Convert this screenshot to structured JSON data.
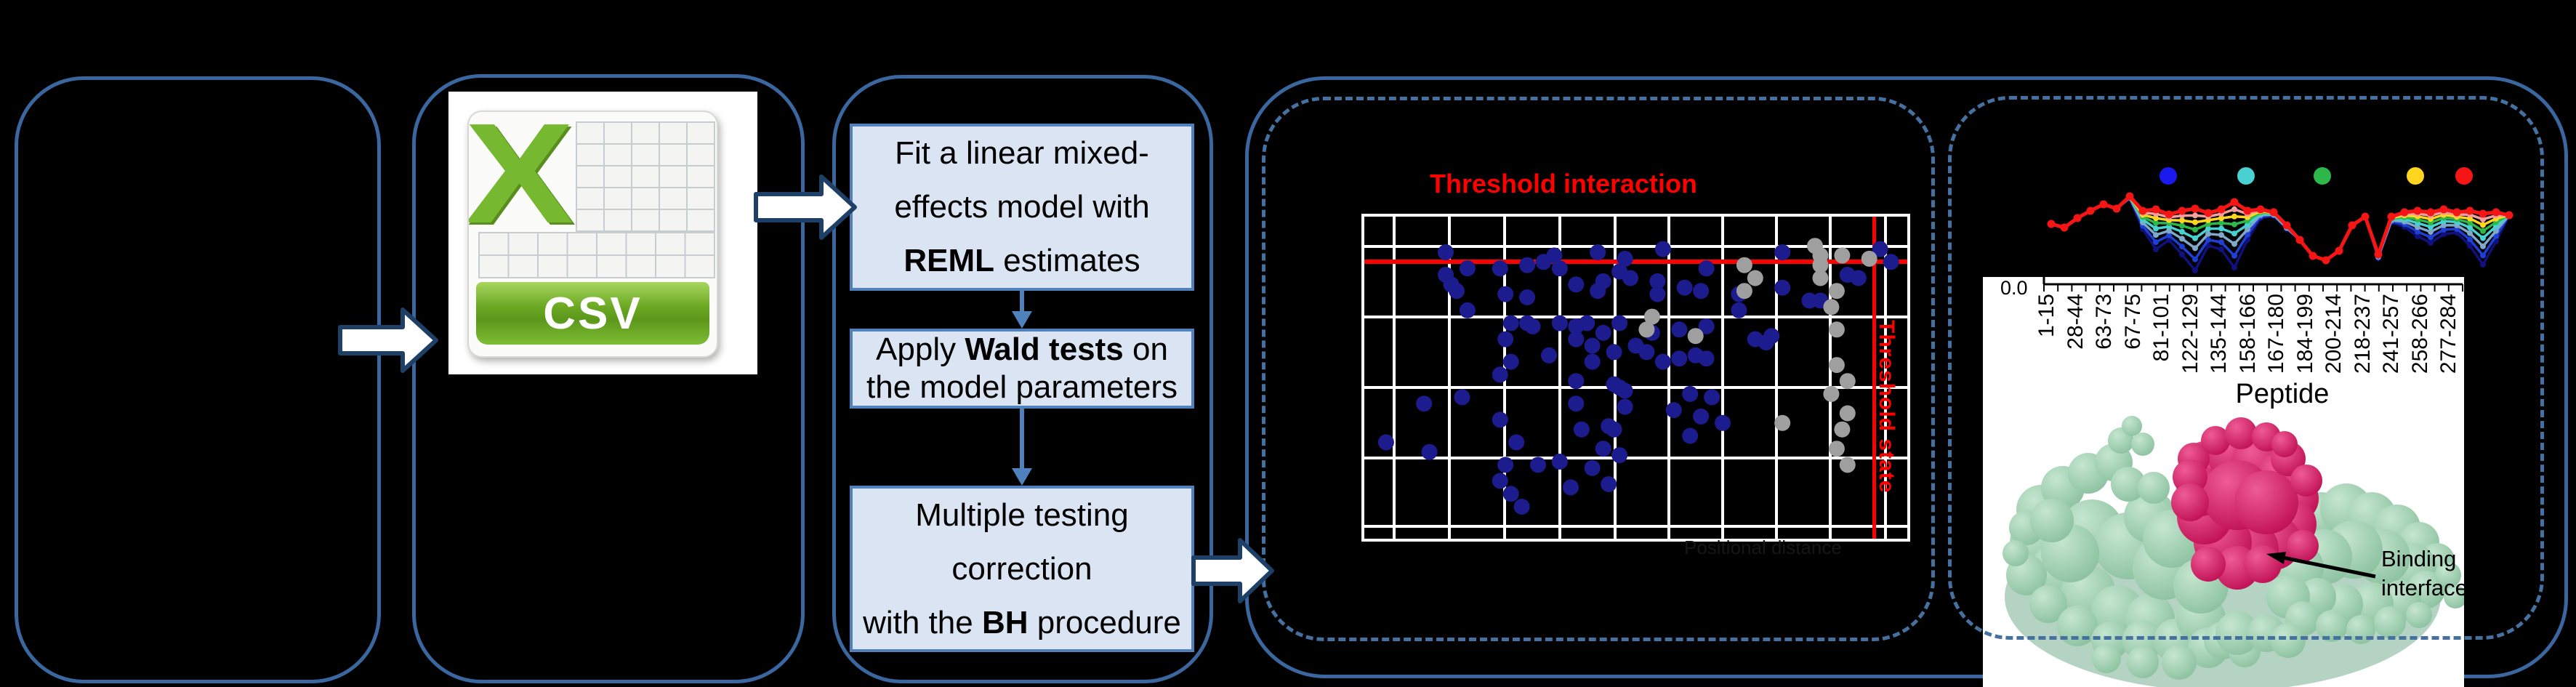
{
  "palette": {
    "panel_border": "#3b67a0",
    "dashed_border": "#44719f",
    "box_fill": "#dbe4f2",
    "box_border": "#4f81bd",
    "flow_arrow": "#4f81bd",
    "block_arrow_fill": "#ffffff",
    "block_arrow_outline": "#1e3f66",
    "red": "#fe0000",
    "scatter_blue": "#1c1c8f",
    "scatter_gray": "#9f9f9f",
    "grid_white": "#ffffff",
    "csv_green": "#76b82f",
    "protein_green": "#9ed0ae",
    "protein_crimson": "#d6145f"
  },
  "flow": {
    "boxes": [
      {
        "name": "fit-model",
        "lines": [
          [
            {
              "t": "Fit a linear mixed-"
            }
          ],
          [
            {
              "t": "effects model with"
            }
          ],
          [
            {
              "t": "REML",
              "b": true
            },
            {
              "t": " estimates"
            }
          ]
        ]
      },
      {
        "name": "wald-tests",
        "lines": [
          [
            {
              "t": "Apply "
            },
            {
              "t": "Wald tests",
              "b": true
            },
            {
              "t": " on"
            }
          ],
          [
            {
              "t": "the model parameters"
            }
          ]
        ]
      },
      {
        "name": "bh-correction",
        "lines": [
          [
            {
              "t": "Multiple testing"
            }
          ],
          [
            {
              "t": "correction"
            }
          ],
          [
            {
              "t": "with the "
            },
            {
              "t": "BH",
              "b": true
            },
            {
              "t": " procedure"
            }
          ]
        ]
      }
    ]
  },
  "csv_icon": {
    "label": "CSV"
  },
  "protein": {
    "annotation_line1": "Binding",
    "annotation_line2": "interface"
  },
  "faint_axis_label": "Positional distance",
  "chart_data": [
    {
      "type": "scatter",
      "title": "Threshold interaction",
      "side_label": "Threshold state",
      "xlabel": "",
      "ylabel": "",
      "grid": true,
      "threshold_y_frac": 0.14,
      "threshold_x_frac": 0.931,
      "series": [
        {
          "name": "significant-peptides",
          "color": "#1c1c8f",
          "points": [
            [
              0.15,
              0.07
            ],
            [
              0.35,
              0.08
            ],
            [
              0.43,
              0.07
            ],
            [
              0.55,
              0.06
            ],
            [
              0.77,
              0.07
            ],
            [
              0.95,
              0.06
            ],
            [
              0.33,
              0.1
            ],
            [
              0.48,
              0.09
            ],
            [
              0.97,
              0.1
            ],
            [
              0.15,
              0.14
            ],
            [
              0.19,
              0.12
            ],
            [
              0.25,
              0.12
            ],
            [
              0.3,
              0.11
            ],
            [
              0.36,
              0.12
            ],
            [
              0.47,
              0.13
            ],
            [
              0.49,
              0.15
            ],
            [
              0.54,
              0.16
            ],
            [
              0.63,
              0.12
            ],
            [
              0.89,
              0.14
            ],
            [
              0.91,
              0.15
            ],
            [
              0.16,
              0.17
            ],
            [
              0.17,
              0.19
            ],
            [
              0.26,
              0.2
            ],
            [
              0.3,
              0.21
            ],
            [
              0.39,
              0.17
            ],
            [
              0.43,
              0.19
            ],
            [
              0.44,
              0.16
            ],
            [
              0.54,
              0.2
            ],
            [
              0.59,
              0.18
            ],
            [
              0.62,
              0.19
            ],
            [
              0.69,
              0.2
            ],
            [
              0.77,
              0.18
            ],
            [
              0.82,
              0.22
            ],
            [
              0.84,
              0.22
            ],
            [
              0.19,
              0.25
            ],
            [
              0.27,
              0.29
            ],
            [
              0.3,
              0.29
            ],
            [
              0.31,
              0.3
            ],
            [
              0.36,
              0.29
            ],
            [
              0.39,
              0.3
            ],
            [
              0.41,
              0.29
            ],
            [
              0.44,
              0.32
            ],
            [
              0.47,
              0.29
            ],
            [
              0.53,
              0.32
            ],
            [
              0.58,
              0.31
            ],
            [
              0.63,
              0.3
            ],
            [
              0.69,
              0.25
            ],
            [
              0.72,
              0.34
            ],
            [
              0.74,
              0.35
            ],
            [
              0.75,
              0.33
            ],
            [
              0.26,
              0.34
            ],
            [
              0.34,
              0.39
            ],
            [
              0.39,
              0.34
            ],
            [
              0.42,
              0.36
            ],
            [
              0.46,
              0.38
            ],
            [
              0.5,
              0.36
            ],
            [
              0.52,
              0.38
            ],
            [
              0.55,
              0.41
            ],
            [
              0.58,
              0.4
            ],
            [
              0.61,
              0.39
            ],
            [
              0.63,
              0.4
            ],
            [
              0.25,
              0.45
            ],
            [
              0.27,
              0.41
            ],
            [
              0.39,
              0.47
            ],
            [
              0.42,
              0.41
            ],
            [
              0.46,
              0.48
            ],
            [
              0.47,
              0.49
            ],
            [
              0.48,
              0.5
            ],
            [
              0.6,
              0.51
            ],
            [
              0.64,
              0.52
            ],
            [
              0.39,
              0.54
            ],
            [
              0.4,
              0.62
            ],
            [
              0.45,
              0.61
            ],
            [
              0.46,
              0.62
            ],
            [
              0.48,
              0.55
            ],
            [
              0.57,
              0.56
            ],
            [
              0.62,
              0.58
            ],
            [
              0.66,
              0.6
            ],
            [
              0.6,
              0.64
            ],
            [
              0.11,
              0.54
            ],
            [
              0.18,
              0.52
            ],
            [
              0.25,
              0.59
            ],
            [
              0.28,
              0.66
            ],
            [
              0.32,
              0.73
            ],
            [
              0.36,
              0.72
            ],
            [
              0.44,
              0.68
            ],
            [
              0.47,
              0.7
            ],
            [
              0.42,
              0.74
            ],
            [
              0.25,
              0.78
            ],
            [
              0.27,
              0.82
            ],
            [
              0.29,
              0.86
            ],
            [
              0.04,
              0.66
            ],
            [
              0.12,
              0.69
            ],
            [
              0.26,
              0.73
            ],
            [
              0.45,
              0.79
            ],
            [
              0.38,
              0.8
            ]
          ]
        },
        {
          "name": "non-significant-peptides",
          "color": "#9f9f9f",
          "points": [
            [
              0.83,
              0.05
            ],
            [
              0.84,
              0.08
            ],
            [
              0.88,
              0.08
            ],
            [
              0.93,
              0.09
            ],
            [
              0.7,
              0.11
            ],
            [
              0.72,
              0.15
            ],
            [
              0.84,
              0.11
            ],
            [
              0.84,
              0.15
            ],
            [
              0.87,
              0.19
            ],
            [
              0.86,
              0.24
            ],
            [
              0.53,
              0.27
            ],
            [
              0.52,
              0.31
            ],
            [
              0.61,
              0.33
            ],
            [
              0.87,
              0.31
            ],
            [
              0.7,
              0.19
            ],
            [
              0.87,
              0.42
            ],
            [
              0.89,
              0.47
            ],
            [
              0.86,
              0.51
            ],
            [
              0.89,
              0.57
            ],
            [
              0.77,
              0.6
            ],
            [
              0.88,
              0.62
            ],
            [
              0.87,
              0.68
            ],
            [
              0.89,
              0.73
            ]
          ]
        }
      ]
    },
    {
      "type": "line",
      "title": "",
      "xlabel": "Peptide",
      "first_ytick": "0.0",
      "categories": [
        "1-15",
        "28-44",
        "63-73",
        "67-75",
        "81-101",
        "122-129",
        "135-144",
        "158-166",
        "167-180",
        "184-199",
        "200-214",
        "218-237",
        "241-257",
        "258-266",
        "277-284"
      ],
      "legend_colors": [
        "#1a1aee",
        "#49d1d1",
        "#2eb84a",
        "#ffd61f",
        "#f51515"
      ],
      "baseline_y": [
        308,
        313,
        300,
        290,
        281,
        287,
        270,
        290,
        288,
        295,
        290,
        287,
        293,
        288,
        278,
        290,
        288,
        292,
        310,
        330,
        352,
        358,
        345,
        310,
        298,
        350,
        298,
        292,
        290,
        292,
        288,
        292,
        290,
        294,
        292,
        296
      ],
      "dip_profile": [
        0,
        0,
        0,
        0,
        0,
        0,
        3,
        25,
        55,
        35,
        60,
        85,
        45,
        55,
        90,
        40,
        12,
        5,
        5,
        0,
        0,
        0,
        0,
        0,
        0,
        5,
        8,
        20,
        35,
        42,
        34,
        28,
        48,
        70,
        40,
        0
      ],
      "series": [
        {
          "name": "series-1",
          "color": "#10107e",
          "factor": 1.0
        },
        {
          "name": "series-2",
          "color": "#1f3fd4",
          "factor": 0.82
        },
        {
          "name": "series-3",
          "color": "#7fa8c9",
          "factor": 0.64
        },
        {
          "name": "series-4",
          "color": "#49d1d1",
          "factor": 0.48
        },
        {
          "name": "series-5",
          "color": "#2eb84a",
          "factor": 0.34
        },
        {
          "name": "series-6",
          "color": "#ffd61f",
          "factor": 0.22
        },
        {
          "name": "series-7",
          "color": "#f4a0a0",
          "factor": 0.11
        },
        {
          "name": "series-8",
          "color": "#f51515",
          "factor": 0
        }
      ]
    }
  ]
}
